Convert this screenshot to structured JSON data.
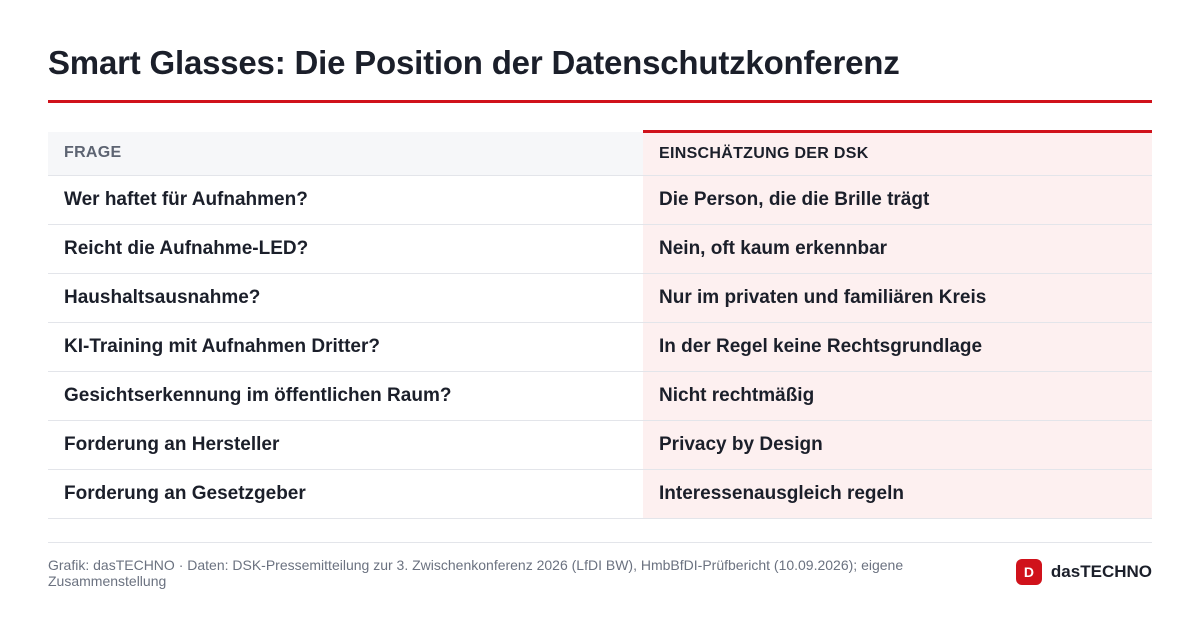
{
  "title": "Smart Glasses: Die Position der Datenschutzkonferenz",
  "accent_color": "#d0121b",
  "table": {
    "headers": [
      "Frage",
      "Einschätzung der DSK"
    ],
    "rows": [
      {
        "frage": "Wer haftet für Aufnahmen?",
        "dsk": "Die Person, die die Brille trägt"
      },
      {
        "frage": "Reicht die Aufnahme-LED?",
        "dsk": "Nein, oft kaum erkennbar"
      },
      {
        "frage": "Haushaltsausnahme?",
        "dsk": "Nur im privaten und familiären Kreis"
      },
      {
        "frage": "KI-Training mit Aufnahmen Dritter?",
        "dsk": "In der Regel keine Rechtsgrundlage"
      },
      {
        "frage": "Gesichtserkennung im öffentlichen Raum?",
        "dsk": "Nicht rechtmäßig"
      },
      {
        "frage": "Forderung an Hersteller",
        "dsk": "Privacy by Design"
      },
      {
        "frage": "Forderung an Gesetzgeber",
        "dsk": "Interessenausgleich regeln"
      }
    ]
  },
  "footer": {
    "source": "Grafik: dasTECHNO · Daten: DSK-Pressemitteilung zur 3. Zwischenkonferenz 2026 (LfDI BW), HmbBfDI-Prüfbericht (10.09.2026); eigene Zusammenstellung",
    "brand_badge": "D",
    "brand_name": "dasTECHNO"
  }
}
